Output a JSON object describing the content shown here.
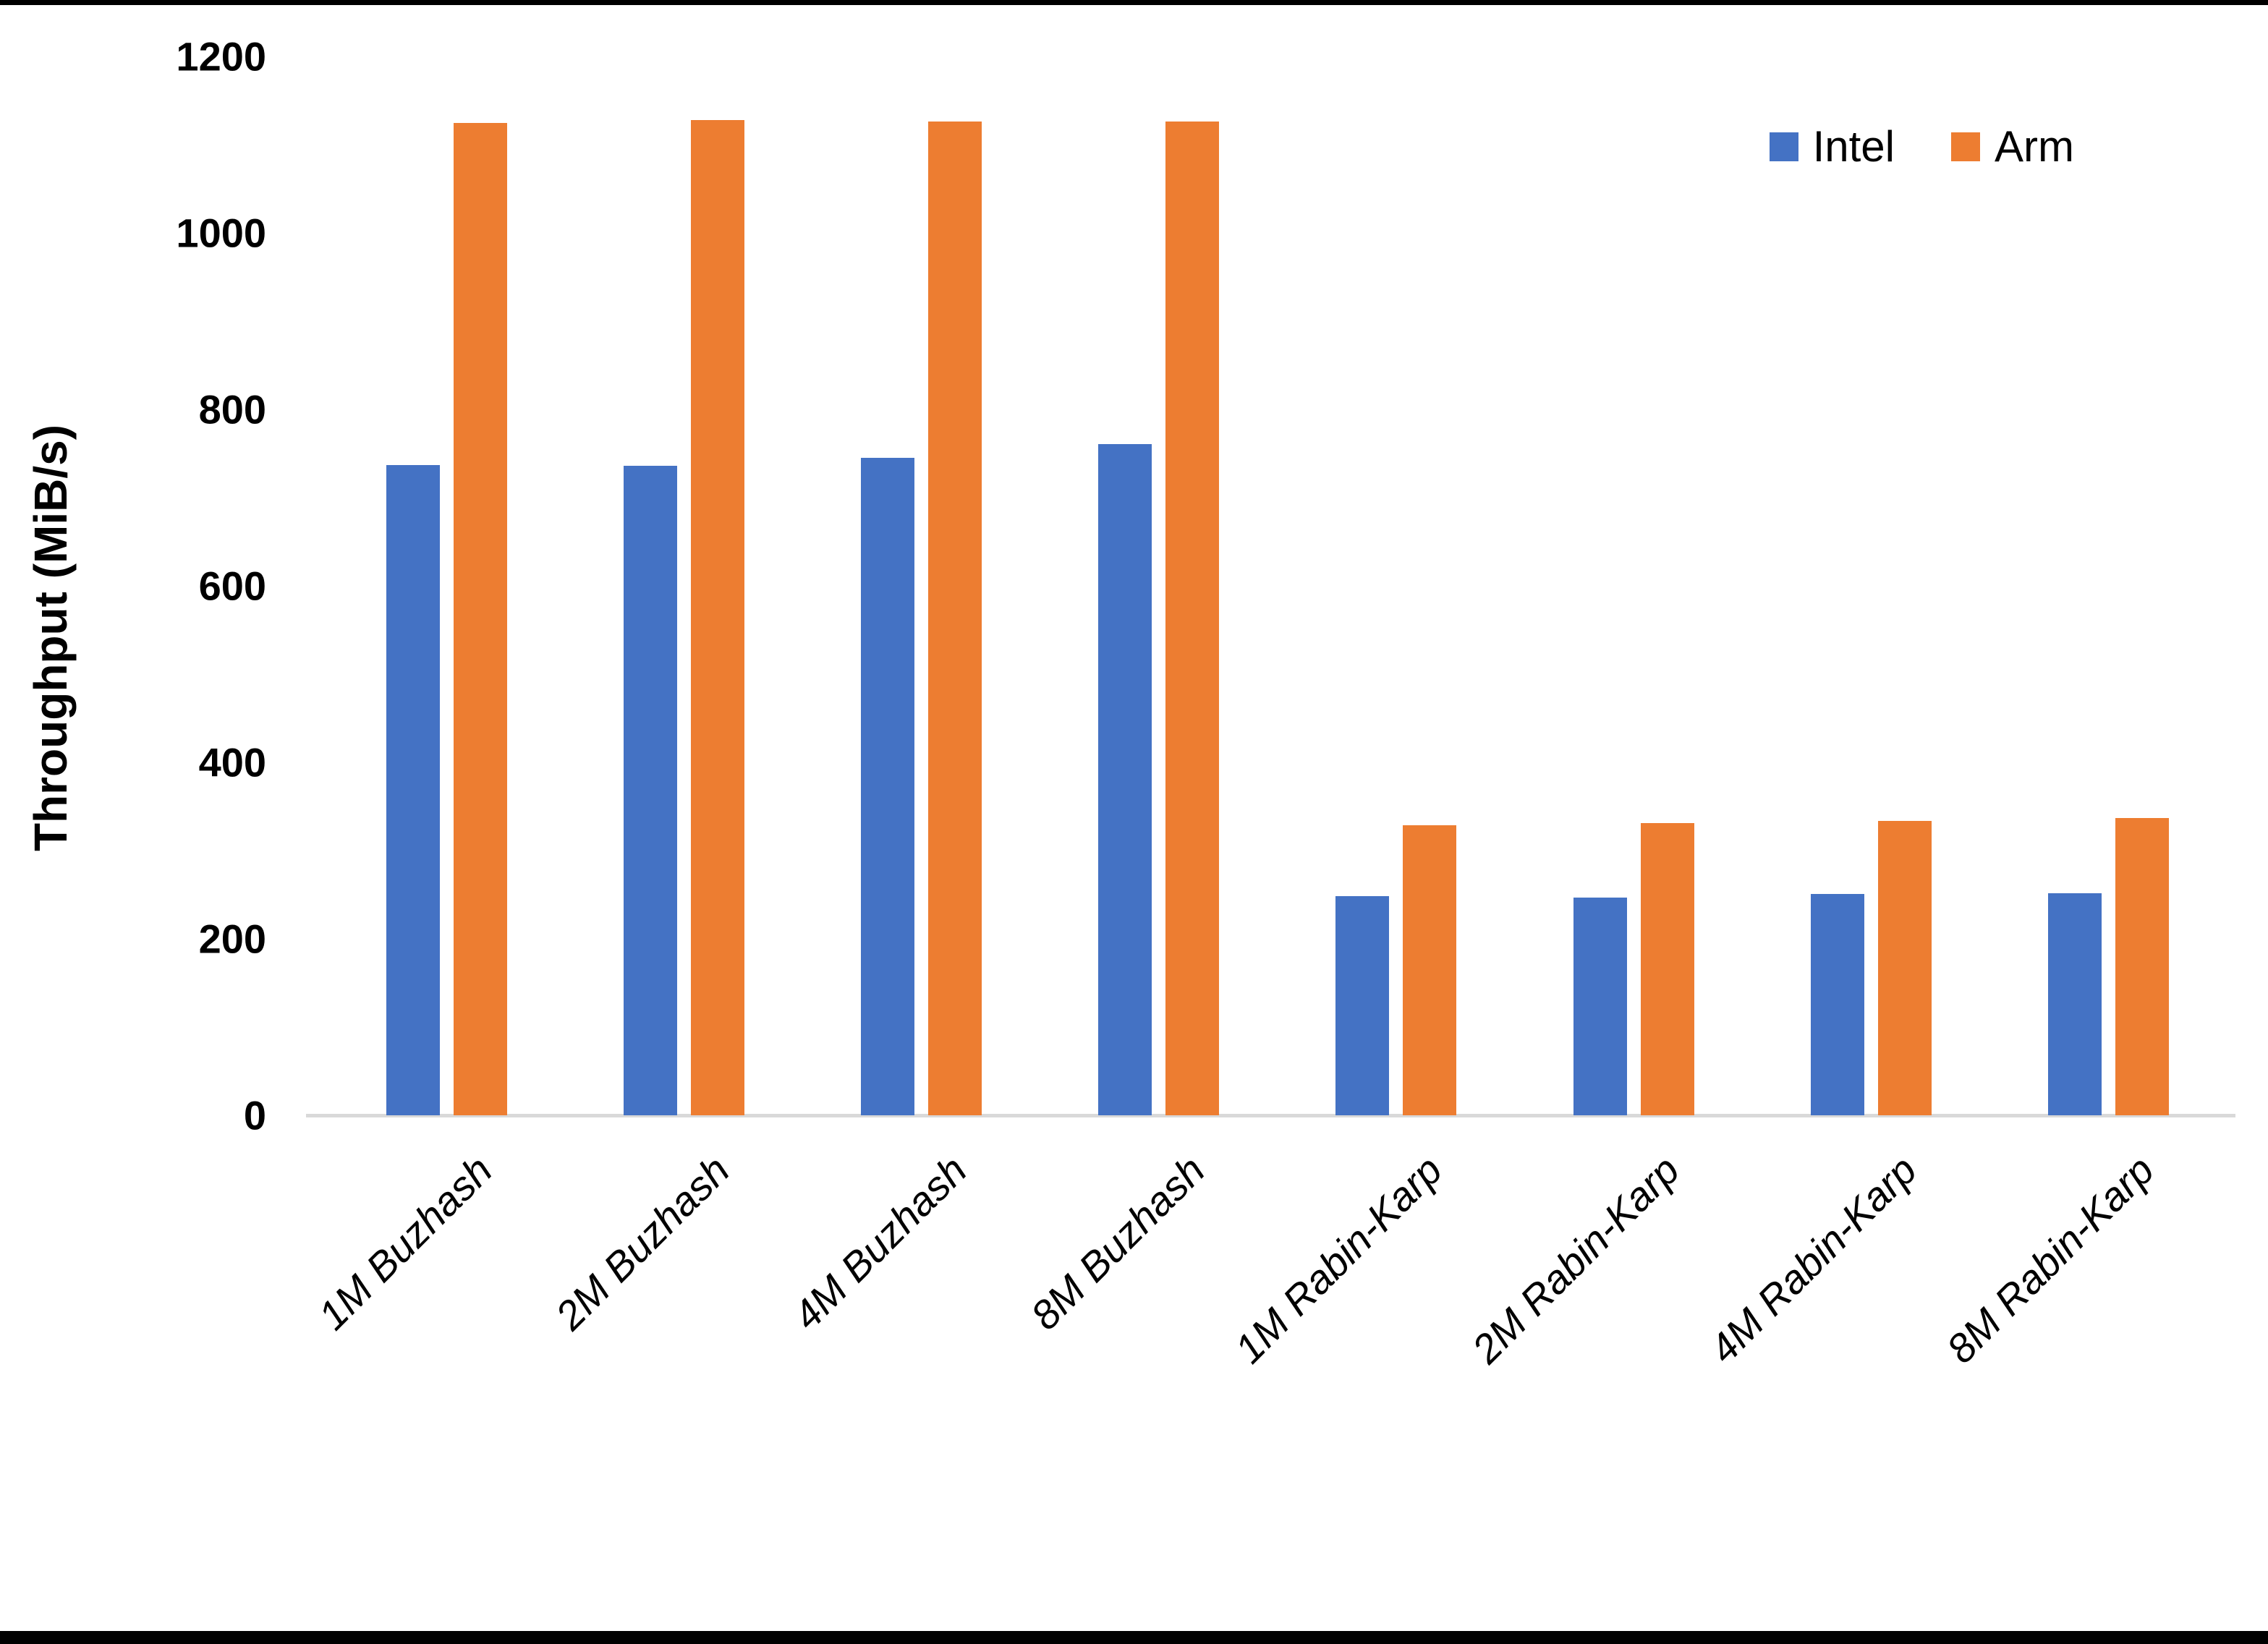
{
  "y_axis": {
    "title": "Throughput (MiB/s)",
    "ticks": [
      0,
      200,
      400,
      600,
      800,
      1000,
      1200
    ]
  },
  "legend": {
    "items": [
      {
        "label": "Intel",
        "color": "#4472C4"
      },
      {
        "label": "Arm",
        "color": "#ED7D31"
      }
    ]
  },
  "chart_data": {
    "type": "bar",
    "title": "",
    "xlabel": "",
    "ylabel": "Throughput (MiB/s)",
    "ylim": [
      0,
      1200
    ],
    "grid": false,
    "legend_position": "top-right",
    "categories": [
      "1M Buzhash",
      "2M Buzhash",
      "4M Buzhash",
      "8M Buzhash",
      "1M Rabin-Karp",
      "2M Rabin-Karp",
      "4M Rabin-Karp",
      "8M Rabin-Karp"
    ],
    "series": [
      {
        "name": "Intel",
        "color": "#4472C4",
        "values": [
          737,
          736,
          745,
          761,
          248,
          247,
          251,
          252
        ]
      },
      {
        "name": "Arm",
        "color": "#ED7D31",
        "values": [
          1125,
          1128,
          1126,
          1126,
          329,
          331,
          334,
          337
        ]
      }
    ]
  },
  "style": {
    "axis_line_color": "#d9d9d9",
    "background": "#ffffff"
  }
}
